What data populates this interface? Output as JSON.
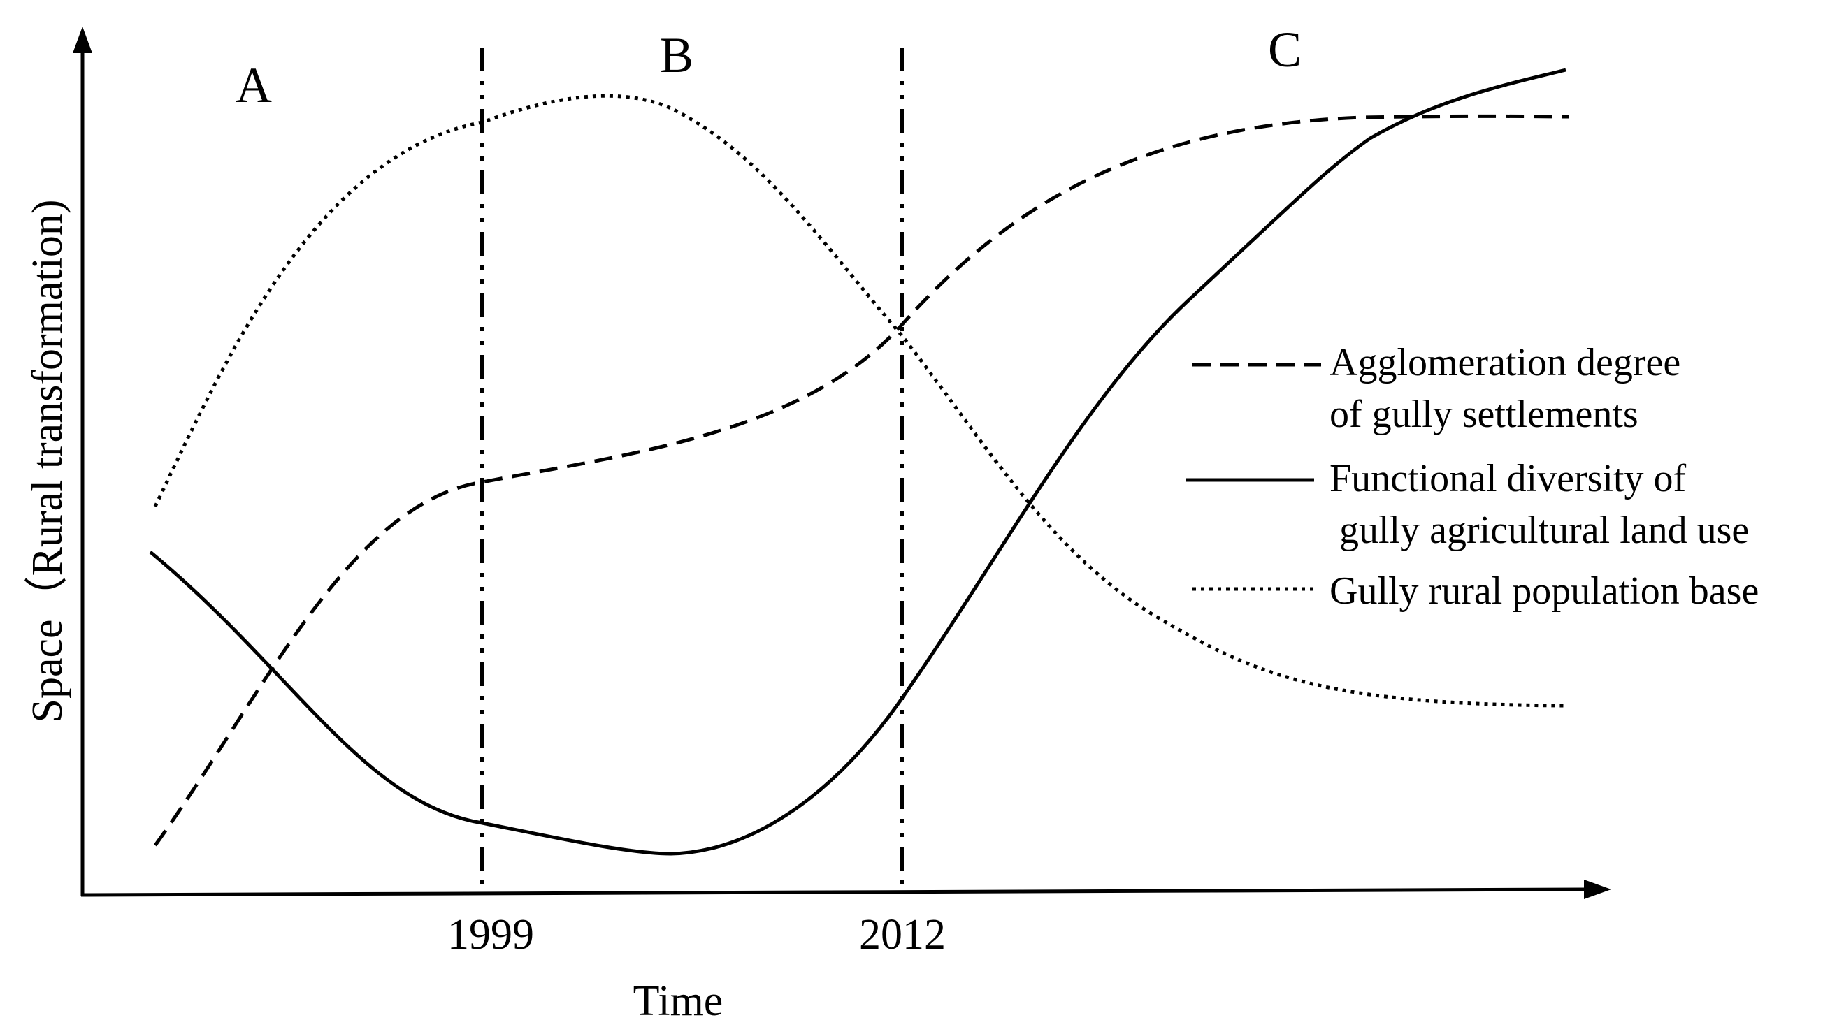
{
  "diagram": {
    "axes": {
      "x_label": "Time",
      "y_label": "Space（Rural transformation)",
      "x_ticks": [
        "1999",
        "2012"
      ]
    },
    "phases": [
      "A",
      "B",
      "C"
    ],
    "series": [
      {
        "id": "agglomeration",
        "style": "dashed",
        "legend_lines": [
          "Agglomeration degree",
          "of gully settlements"
        ]
      },
      {
        "id": "functional",
        "style": "solid",
        "legend_lines": [
          "Functional diversity of",
          " gully agricultural land use"
        ]
      },
      {
        "id": "population",
        "style": "dotted",
        "legend_lines": [
          "Gully rural population base"
        ]
      }
    ],
    "colors": {
      "line": "#000000",
      "background": "#ffffff"
    }
  }
}
